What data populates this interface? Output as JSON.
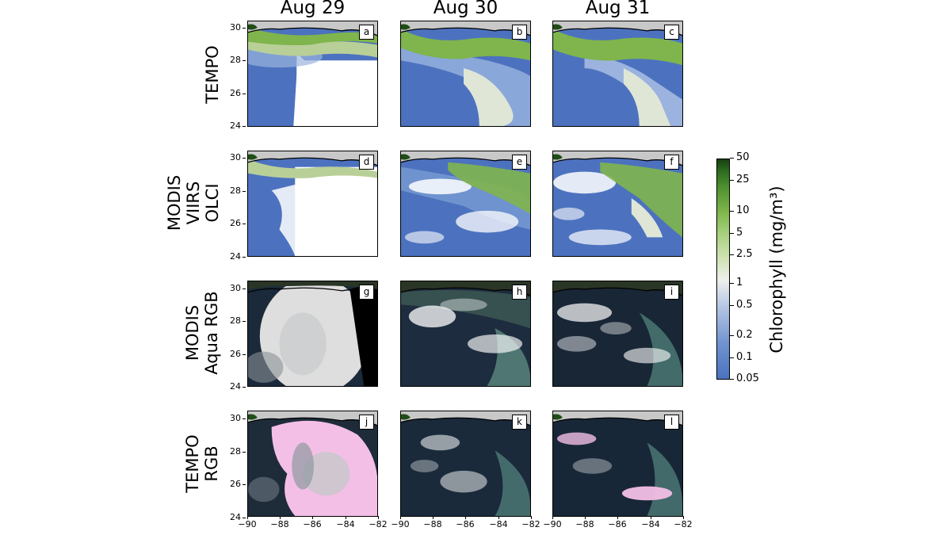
{
  "columns": [
    "Aug 29",
    "Aug 30",
    "Aug 31"
  ],
  "rows": [
    {
      "label_lines": [
        "TEMPO"
      ],
      "panels": [
        "a",
        "b",
        "c"
      ]
    },
    {
      "label_lines": [
        "MODIS",
        "VIIRS",
        "OLCI"
      ],
      "panels": [
        "d",
        "e",
        "f"
      ]
    },
    {
      "label_lines": [
        "MODIS",
        "Aqua RGB"
      ],
      "panels": [
        "g",
        "h",
        "i"
      ]
    },
    {
      "label_lines": [
        "TEMPO",
        "RGB"
      ],
      "panels": [
        "j",
        "k",
        "l"
      ]
    }
  ],
  "y_ticks": [
    "30",
    "28",
    "26",
    "24"
  ],
  "x_ticks": [
    "−90",
    "−88",
    "−86",
    "−84",
    "−82"
  ],
  "colorbar": {
    "title": "Chlorophyll (mg/m³)",
    "ticks": [
      "50",
      "25",
      "10",
      "5",
      "2.5",
      "1",
      "0.5",
      "0.2",
      "0.1",
      "0.05"
    ]
  }
}
